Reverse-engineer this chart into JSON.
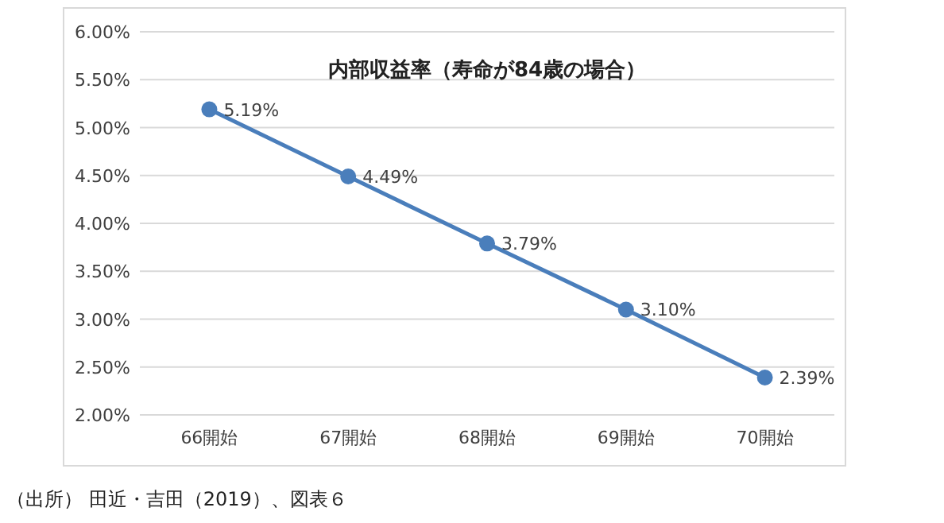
{
  "chart_data": {
    "type": "line",
    "title": "内部収益率（寿命が84歳の場合）",
    "categories": [
      "66開始",
      "67開始",
      "68開始",
      "69開始",
      "70開始"
    ],
    "series": [
      {
        "color": "#4a7ebb",
        "values": [
          5.19,
          4.49,
          3.79,
          3.1,
          2.39
        ],
        "value_labels": [
          "5.19%",
          "4.49%",
          "3.79%",
          "3.10%",
          "2.39%"
        ]
      }
    ],
    "ylim": [
      2,
      6
    ],
    "yticks": [
      {
        "value": 2,
        "label": "2.00%"
      },
      {
        "value": 2.5,
        "label": "2.50%"
      },
      {
        "value": 3,
        "label": "3.00%"
      },
      {
        "value": 3.5,
        "label": "3.50%"
      },
      {
        "value": 4,
        "label": "4.00%"
      },
      {
        "value": 4.5,
        "label": "4.50%"
      },
      {
        "value": 5,
        "label": "5.00%"
      },
      {
        "value": 5.5,
        "label": "5.50%"
      },
      {
        "value": 6,
        "label": "6.00%"
      }
    ],
    "grid": "y",
    "marker": "circle",
    "line_style": "solid",
    "annotations": [
      "（出所） 田近・吉田（2019）、図表６"
    ]
  }
}
